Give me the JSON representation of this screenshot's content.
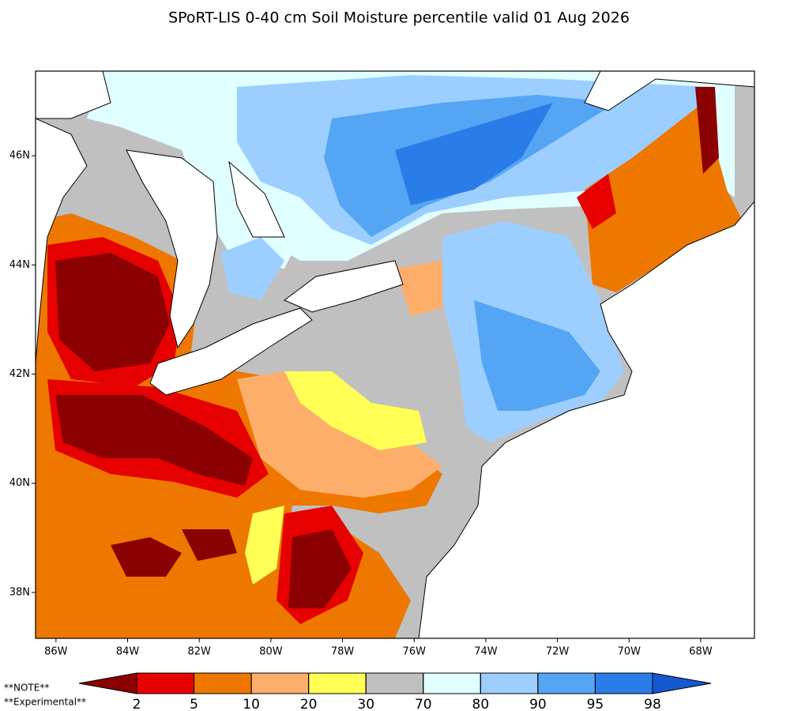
{
  "title": "SPoRT-LIS 0-40 cm Soil Moisture percentile valid 01 Aug 2026",
  "map": {
    "lon_lim": [
      -86.57,
      -66.5
    ],
    "lat_lim": [
      37.16,
      47.55
    ],
    "lon_ticks": [
      {
        "value": -86,
        "label": "86W"
      },
      {
        "value": -84,
        "label": "84W"
      },
      {
        "value": -82,
        "label": "82W"
      },
      {
        "value": -80,
        "label": "80W"
      },
      {
        "value": -78,
        "label": "78W"
      },
      {
        "value": -76,
        "label": "76W"
      },
      {
        "value": -74,
        "label": "74W"
      },
      {
        "value": -72,
        "label": "72W"
      },
      {
        "value": -70,
        "label": "70W"
      },
      {
        "value": -68,
        "label": "68W"
      }
    ],
    "lat_ticks": [
      {
        "value": 46,
        "label": "46N"
      },
      {
        "value": 44,
        "label": "44N"
      },
      {
        "value": 42,
        "label": "42N"
      },
      {
        "value": 40,
        "label": "40N"
      },
      {
        "value": 38,
        "label": "38N"
      }
    ]
  },
  "colorbar": {
    "levels": [
      2,
      5,
      10,
      20,
      30,
      70,
      80,
      90,
      95,
      98
    ],
    "colors": [
      "#8b0000",
      "#e60000",
      "#ee7700",
      "#fdae6b",
      "#ffff55",
      "#c0c0c0",
      "#e0ffff",
      "#9ccfff",
      "#55a5f5",
      "#2a7de8",
      "#1558d0"
    ]
  },
  "notes": [
    "**NOTE**",
    "**Experimental**"
  ]
}
